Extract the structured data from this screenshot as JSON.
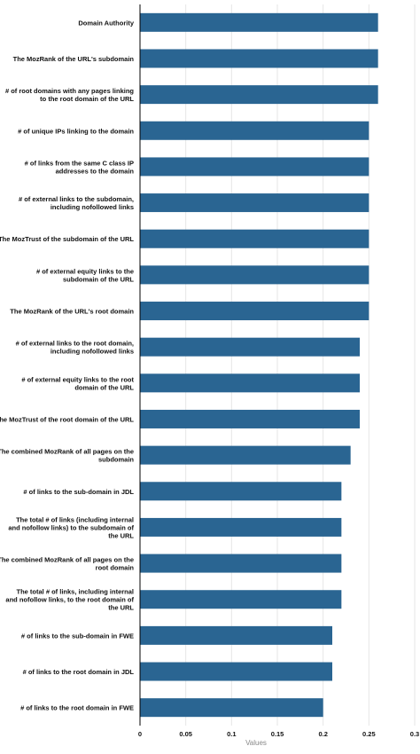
{
  "chart_data": {
    "type": "bar",
    "orientation": "horizontal",
    "categories": [
      "Domain Authority",
      "The MozRank of the URL's subdomain",
      "# of root domains with any pages linking to the root domain of the URL",
      "# of unique IPs linking to the domain",
      "# of links from the same C class IP addresses to the domain",
      "# of external links to the subdomain, including nofollowed links",
      "The MozTrust of the subdomain of the URL",
      "# of external equity links to the subdomain of the URL",
      "The MozRank of the URL's root domain",
      "# of external links to the root domain, including nofollowed links",
      "# of external equity links to the root domain of the URL",
      "The MozTrust of the root domain of the URL",
      "The combined MozRank of all pages on the subdomain",
      "# of links to the sub-domain in JDL",
      "The total # of links (including internal and nofollow links) to the subdomain of the URL",
      "The combined MozRank of all pages on the root domain",
      "The total # of links, including internal and nofollow links, to the root domain of the URL",
      "# of links to the sub-domain in FWE",
      "# of links to the root domain in JDL",
      "# of links to the root domain in FWE"
    ],
    "values": [
      0.26,
      0.26,
      0.26,
      0.25,
      0.25,
      0.25,
      0.25,
      0.25,
      0.25,
      0.24,
      0.24,
      0.24,
      0.23,
      0.22,
      0.22,
      0.22,
      0.22,
      0.21,
      0.21,
      0.2
    ],
    "xlabel": "Values",
    "xlim": [
      0,
      0.3
    ],
    "ticks": [
      "0",
      "0.05",
      "0.1",
      "0.15",
      "0.2",
      "0.25",
      "0.3"
    ],
    "tick_values": [
      0,
      0.05,
      0.1,
      0.15,
      0.2,
      0.25,
      0.3
    ],
    "grid": true,
    "bar_color": "#2a6592"
  }
}
